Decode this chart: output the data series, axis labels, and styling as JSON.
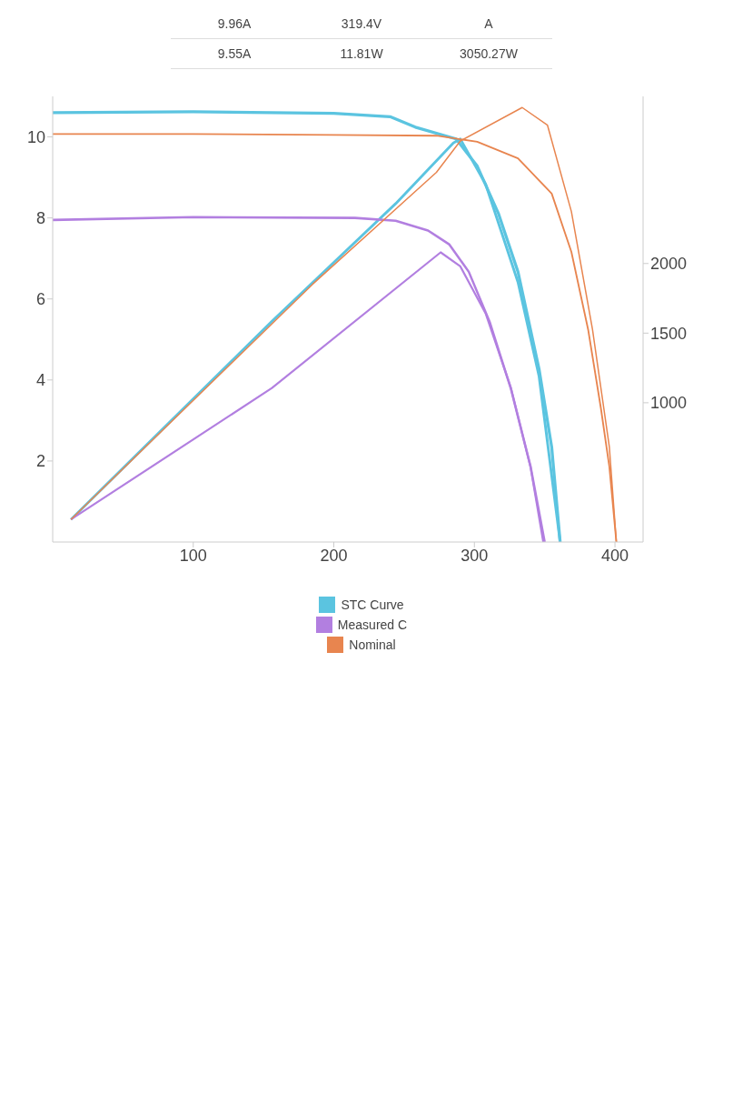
{
  "chart_data": {
    "type": "line",
    "annotations": [
      "9.96A",
      "319.4V",
      "A",
      "9.55A",
      "11.81W",
      "3050.27W"
    ],
    "xlim": [
      0,
      420
    ],
    "xticks": [
      100,
      200,
      300,
      400
    ],
    "ylim": [
      0,
      11
    ],
    "yticks": [
      2,
      4,
      6,
      8,
      10
    ],
    "y2lim": [
      0,
      3200
    ],
    "y2ticks": [
      1000,
      1500,
      2000
    ],
    "grid": false,
    "legend": "bottom",
    "marker": "none",
    "line_style": "solid",
    "series": [
      {
        "name": "STC Curve",
        "color": "#5bc4e0",
        "x": [
          0,
          100,
          200,
          240,
          258,
          287,
          302,
          317,
          331,
          346,
          355,
          361
        ],
        "values": [
          10.6,
          10.62,
          10.58,
          10.5,
          10.24,
          9.95,
          9.28,
          8.12,
          6.67,
          4.27,
          2.34,
          0
        ]
      },
      {
        "color": "#5bc4e0",
        "axis": "y2",
        "x": [
          13,
          156,
          244,
          285,
          290,
          308,
          331,
          346,
          361
        ],
        "values": [
          162,
          1585,
          2430,
          2866,
          2894,
          2570,
          1866,
          1190,
          0
        ]
      },
      {
        "name": "Measured C",
        "color": "#b27fe0",
        "x": [
          0,
          100,
          215,
          244,
          267,
          282,
          296,
          311,
          326,
          340,
          350
        ],
        "values": [
          7.95,
          8.02,
          8.0,
          7.93,
          7.69,
          7.35,
          6.67,
          5.42,
          3.78,
          1.86,
          0
        ]
      },
      {
        "color": "#b27fe0",
        "axis": "y2",
        "x": [
          13,
          156,
          276,
          290,
          308,
          326,
          340,
          349
        ],
        "values": [
          162,
          1106,
          2080,
          1979,
          1641,
          1106,
          535,
          0
        ]
      },
      {
        "name": "Nominal",
        "color": "#e8854f",
        "x": [
          0,
          100,
          200,
          273,
          302,
          331,
          355,
          369,
          381,
          390,
          396,
          401
        ],
        "values": [
          10.07,
          10.07,
          10.05,
          10.03,
          9.88,
          9.47,
          8.6,
          7.16,
          5.23,
          3.3,
          1.86,
          0
        ]
      },
      {
        "color": "#e8854f",
        "axis": "y2",
        "x": [
          13,
          185,
          273,
          290,
          334,
          352,
          369,
          384,
          396,
          401
        ],
        "values": [
          162,
          1852,
          2655,
          2880,
          3120,
          2993,
          2373,
          1528,
          683,
          0
        ]
      }
    ]
  }
}
